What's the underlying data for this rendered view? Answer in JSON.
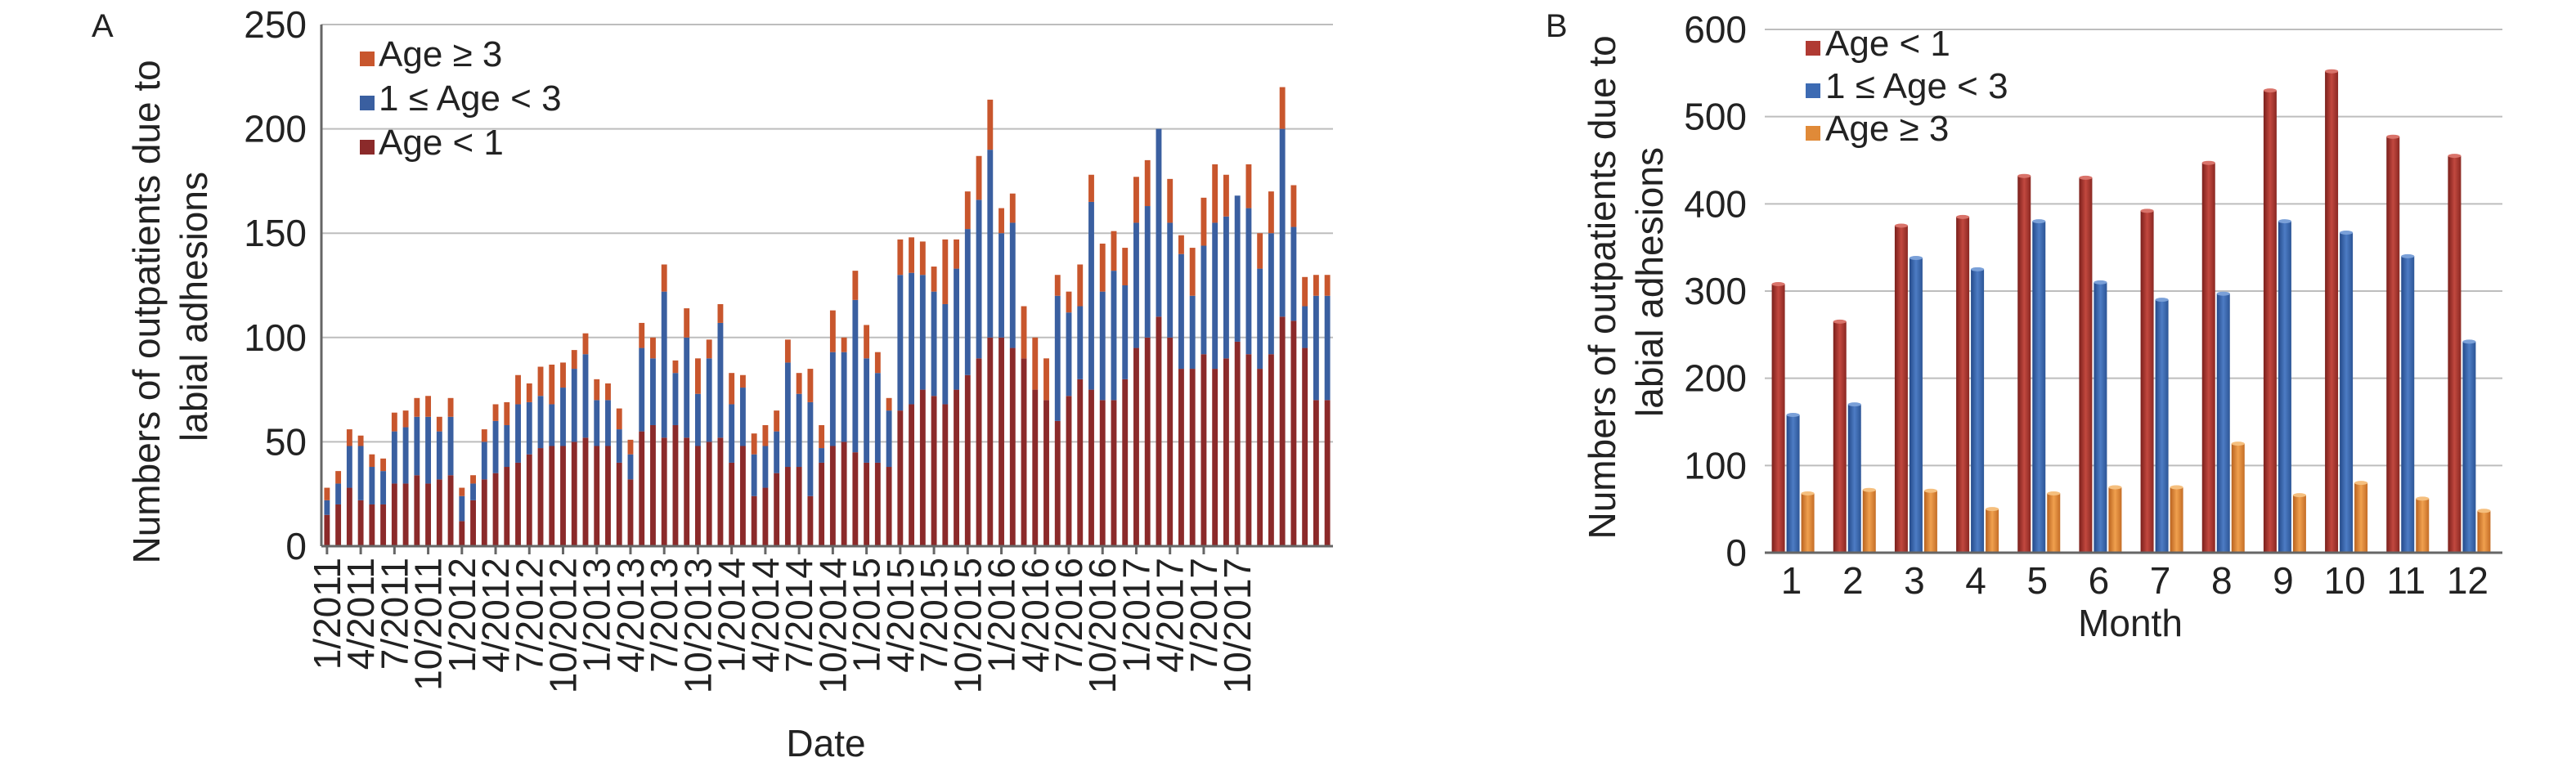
{
  "chart_data": [
    {
      "panel": "A",
      "type": "bar",
      "stacked": true,
      "xlabel": "Date",
      "ylabel": "Numbers of outpatients due to labial adhesions",
      "ylim": [
        0,
        250
      ],
      "yticks": [
        "0",
        "50",
        "100",
        "150",
        "200",
        "250"
      ],
      "x_tick_labels": [
        "1/2011",
        "4/2011",
        "7/2011",
        "10/2011",
        "1/2012",
        "4/2012",
        "7/2012",
        "10/2012",
        "1/2013",
        "4/2013",
        "7/2013",
        "10/2013",
        "1/2014",
        "4/2014",
        "7/2014",
        "10/2014",
        "1/2015",
        "4/2015",
        "7/2015",
        "10/2015",
        "1/2016",
        "4/2016",
        "7/2016",
        "10/2016",
        "1/2017",
        "4/2017",
        "7/2017",
        "10/2017"
      ],
      "legend": {
        "position": "top-left",
        "order": [
          "Age ≥ 3",
          "1 ≤ Age < 3",
          "Age < 1"
        ]
      },
      "grid": true,
      "colors": {
        "Age < 1": "#8b2a2a",
        "1 ≤ Age < 3": "#3a5fa0",
        "Age ≥ 3": "#c8562d"
      },
      "series": [
        {
          "name": "Age < 1",
          "values": [
            15,
            20,
            28,
            22,
            20,
            20,
            30,
            30,
            34,
            30,
            32,
            34,
            12,
            22,
            32,
            35,
            38,
            40,
            44,
            47,
            48,
            48,
            50,
            52,
            48,
            48,
            40,
            32,
            55,
            58,
            52,
            58,
            52,
            48,
            50,
            52,
            40,
            48,
            24,
            28,
            35,
            38,
            38,
            24,
            40,
            48,
            50,
            45,
            40,
            40,
            38,
            65,
            68,
            75,
            72,
            68,
            75,
            82,
            90,
            100,
            100,
            95,
            90,
            75,
            70,
            60,
            72,
            80,
            75,
            70,
            70,
            80,
            95,
            100,
            110,
            100,
            85,
            85,
            92,
            85,
            90,
            98,
            92,
            85,
            92,
            110,
            108,
            95,
            70,
            70
          ]
        },
        {
          "name": "1 ≤ Age < 3",
          "values": [
            7,
            10,
            20,
            26,
            18,
            16,
            25,
            27,
            28,
            32,
            23,
            28,
            12,
            8,
            18,
            25,
            20,
            28,
            25,
            25,
            20,
            28,
            35,
            40,
            22,
            22,
            16,
            12,
            40,
            32,
            70,
            25,
            48,
            25,
            40,
            55,
            28,
            28,
            20,
            20,
            20,
            50,
            35,
            45,
            7,
            45,
            43,
            73,
            50,
            43,
            27,
            65,
            63,
            55,
            50,
            48,
            58,
            70,
            76,
            90,
            50,
            60,
            0,
            0,
            0,
            60,
            40,
            35,
            90,
            52,
            62,
            45,
            60,
            63,
            90,
            55,
            55,
            35,
            52,
            70,
            68,
            70,
            70,
            48,
            58,
            90,
            45,
            20,
            50,
            50
          ]
        },
        {
          "name": "Age ≥ 3",
          "values": [
            6,
            6,
            8,
            5,
            6,
            6,
            9,
            8,
            9,
            10,
            7,
            9,
            4,
            4,
            6,
            8,
            11,
            14,
            9,
            14,
            19,
            12,
            9,
            10,
            10,
            8,
            10,
            7,
            12,
            10,
            13,
            6,
            14,
            17,
            9,
            9,
            15,
            6,
            10,
            10,
            10,
            11,
            10,
            16,
            11,
            20,
            7,
            14,
            16,
            10,
            6,
            17,
            17,
            16,
            12,
            31,
            14,
            18,
            21,
            24,
            12,
            14,
            25,
            25,
            20,
            10,
            10,
            20,
            13,
            23,
            19,
            18,
            22,
            22,
            0,
            21,
            9,
            23,
            23,
            28,
            20,
            0,
            21,
            17,
            20,
            20,
            20,
            14,
            10,
            10
          ]
        }
      ]
    },
    {
      "panel": "B",
      "type": "bar",
      "stacked": false,
      "xlabel": "Month",
      "ylabel": "Numbers of outpatients due to labial adhesions",
      "ylim": [
        0,
        600
      ],
      "yticks": [
        "0",
        "100",
        "200",
        "300",
        "400",
        "500",
        "600"
      ],
      "categories": [
        "1",
        "2",
        "3",
        "4",
        "5",
        "6",
        "7",
        "8",
        "9",
        "10",
        "11",
        "12"
      ],
      "legend": {
        "position": "top-left",
        "order": [
          "Age < 1",
          "1 ≤ Age < 3",
          "Age ≥ 3"
        ]
      },
      "grid": true,
      "colors": {
        "Age < 1": "#b03a33",
        "1 ≤ Age < 3": "#3d6bb3",
        "Age ≥ 3": "#e08a38"
      },
      "series": [
        {
          "name": "Age < 1",
          "values": [
            308,
            265,
            375,
            385,
            432,
            430,
            392,
            447,
            530,
            552,
            477,
            455
          ]
        },
        {
          "name": "1 ≤ Age < 3",
          "values": [
            158,
            170,
            338,
            325,
            380,
            310,
            290,
            297,
            380,
            367,
            340,
            242
          ]
        },
        {
          "name": "Age ≥ 3",
          "values": [
            68,
            72,
            71,
            50,
            68,
            75,
            75,
            125,
            66,
            80,
            62,
            48
          ]
        }
      ]
    }
  ],
  "panels": {
    "a": {
      "letter": "A"
    },
    "b": {
      "letter": "B"
    }
  }
}
